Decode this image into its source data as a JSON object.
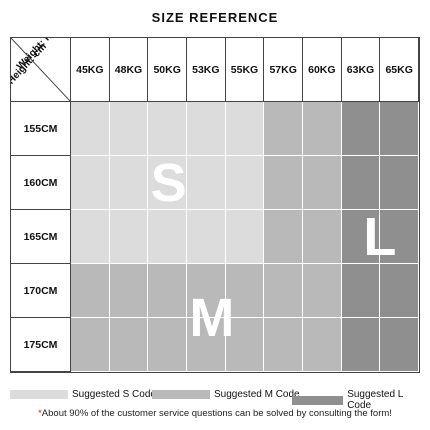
{
  "title": "SIZE REFERENCE",
  "corner": {
    "weight_label": "Weight: kg",
    "height_label": "Height: cm"
  },
  "weights": [
    "45KG",
    "48KG",
    "50KG",
    "53KG",
    "55KG",
    "57KG",
    "60KG",
    "63KG",
    "65KG"
  ],
  "heights": [
    "155CM",
    "160CM",
    "165CM",
    "170CM",
    "175CM"
  ],
  "zone_letters": {
    "S": "S",
    "M": "M",
    "L": "L"
  },
  "colors": {
    "S": "#dcdcdc",
    "M": "#b9b9b9",
    "L": "#8f8f8f",
    "note_star": "#d21e1e"
  },
  "chart_data": {
    "type": "table",
    "title": "SIZE REFERENCE",
    "columns": [
      "45KG",
      "48KG",
      "50KG",
      "53KG",
      "55KG",
      "57KG",
      "60KG",
      "63KG",
      "65KG"
    ],
    "rows": [
      {
        "height": "155CM",
        "sizes": [
          "S",
          "S",
          "S",
          "S",
          "S",
          "M",
          "M",
          "L",
          "L"
        ]
      },
      {
        "height": "160CM",
        "sizes": [
          "S",
          "S",
          "S",
          "S",
          "S",
          "M",
          "M",
          "L",
          "L"
        ]
      },
      {
        "height": "165CM",
        "sizes": [
          "S",
          "S",
          "S",
          "S",
          "S",
          "M",
          "M",
          "L",
          "L"
        ]
      },
      {
        "height": "170CM",
        "sizes": [
          "M",
          "M",
          "M",
          "M",
          "M",
          "M",
          "M",
          "L",
          "L"
        ]
      },
      {
        "height": "175CM",
        "sizes": [
          "M",
          "M",
          "M",
          "M",
          "M",
          "M",
          "M",
          "L",
          "L"
        ]
      }
    ]
  },
  "legend": [
    {
      "code": "S",
      "label": "Suggested S Code"
    },
    {
      "code": "M",
      "label": "Suggested M Code"
    },
    {
      "code": "L",
      "label": "Suggested L Code"
    }
  ],
  "note": {
    "star": "*",
    "text": "About 90% of the customer service questions can be solved by consulting the form!"
  }
}
